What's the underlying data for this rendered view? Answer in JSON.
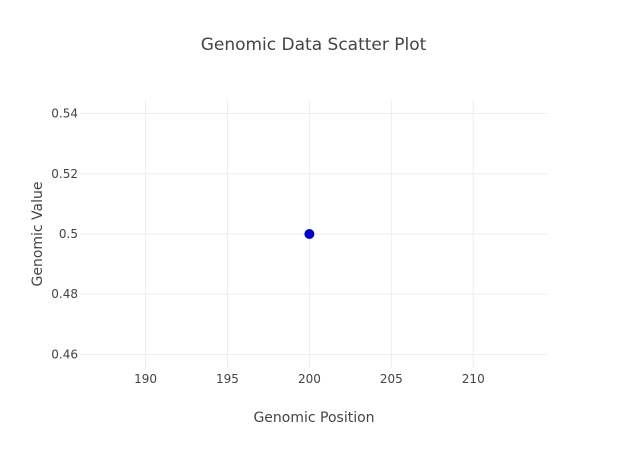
{
  "chart_data": {
    "type": "scatter",
    "title": "Genomic Data Scatter Plot",
    "xlabel": "Genomic Position",
    "ylabel": "Genomic Value",
    "xlim": [
      186,
      214.5
    ],
    "ylim": [
      0.4555,
      0.5445
    ],
    "xticks": [
      190,
      195,
      200,
      205,
      210
    ],
    "xtick_labels": [
      "190",
      "195",
      "200",
      "205",
      "210"
    ],
    "yticks": [
      0.46,
      0.48,
      0.5,
      0.52,
      0.54
    ],
    "ytick_labels": [
      "0.46",
      "0.48",
      "0.5",
      "0.52",
      "0.54"
    ],
    "grid": true,
    "legend": false,
    "series": [
      {
        "x": [
          200
        ],
        "y": [
          0.5
        ],
        "color": "#0000cc"
      }
    ]
  }
}
